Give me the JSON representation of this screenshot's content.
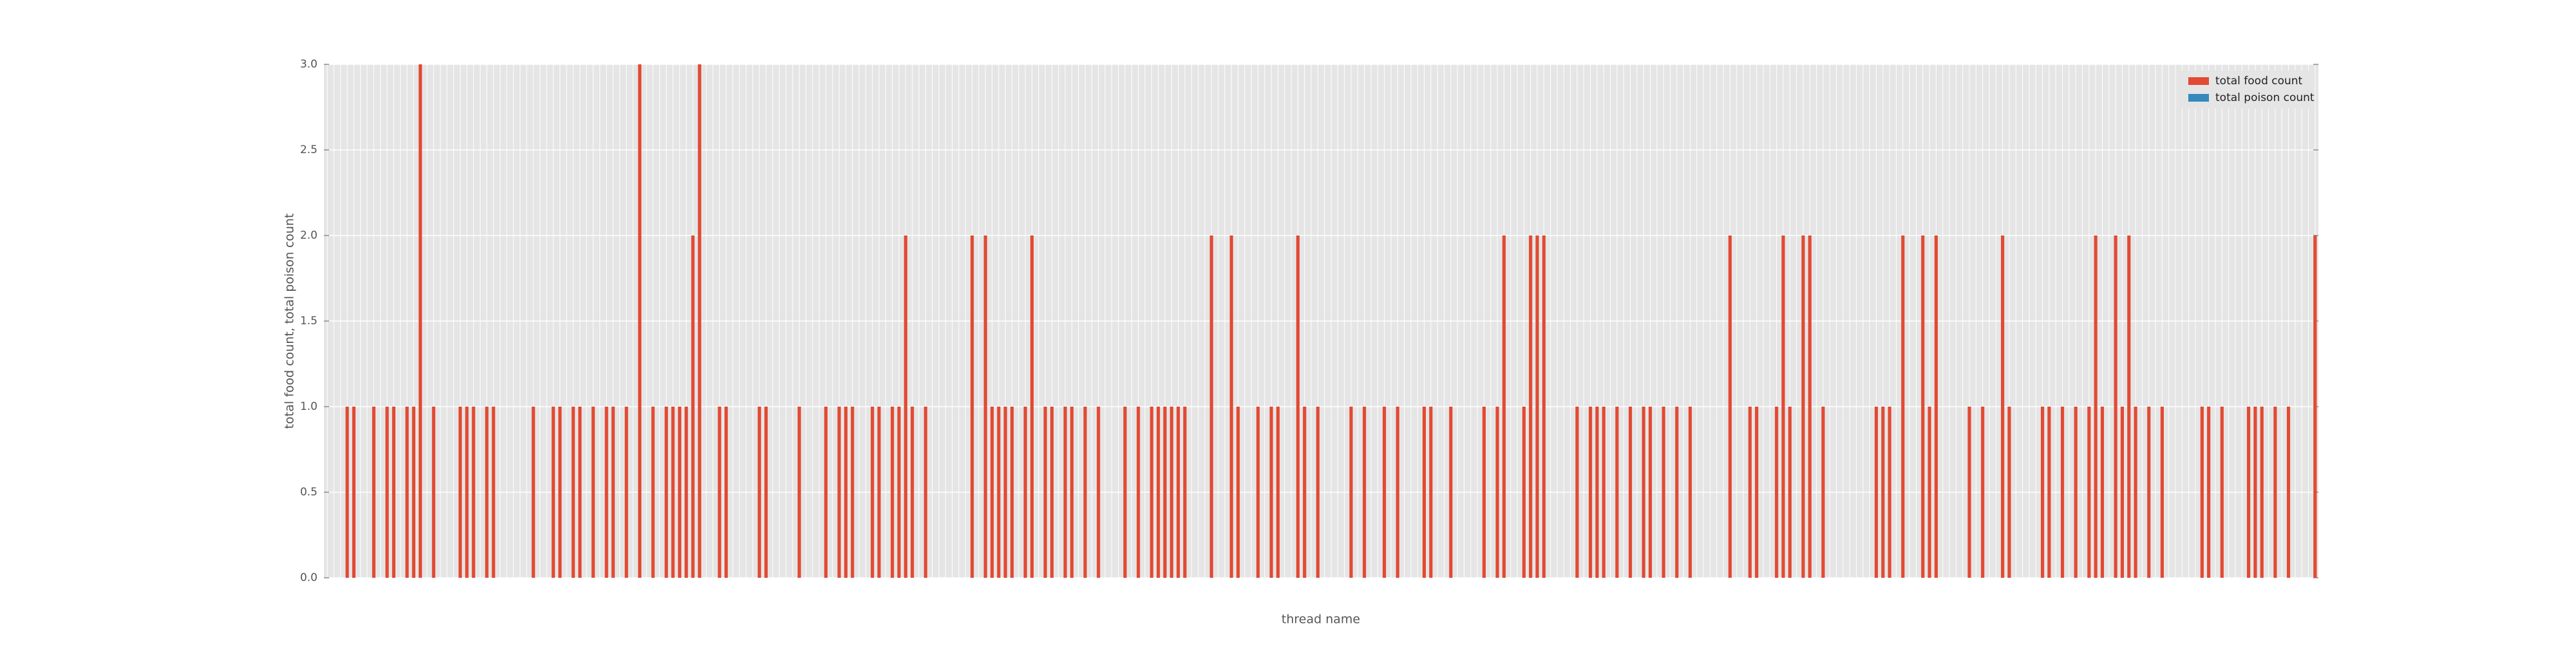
{
  "chart_data": {
    "type": "bar",
    "stacked": true,
    "xlabel": "thread name",
    "ylabel": "total food count, total poison count",
    "categories": [
      null,
      null,
      null,
      null,
      null,
      null,
      null,
      null,
      null,
      null,
      null,
      null,
      null,
      null,
      null,
      null,
      null,
      null,
      null,
      null,
      null,
      null,
      null,
      null,
      null,
      null,
      null,
      null,
      null,
      null,
      null,
      null,
      null,
      null,
      null,
      null,
      null,
      null,
      null,
      null,
      null,
      null,
      null,
      null,
      null,
      null,
      null,
      null,
      null,
      null,
      null,
      null,
      null,
      null,
      null,
      null,
      null,
      null,
      null,
      null,
      null,
      null,
      null,
      null,
      null,
      null,
      null,
      null,
      null,
      null,
      null,
      null,
      null,
      null,
      null,
      null,
      null,
      null,
      null,
      null,
      null,
      null,
      null,
      null,
      null,
      null,
      null,
      null,
      null,
      null,
      null,
      null,
      null,
      null,
      null,
      null,
      null,
      null,
      null,
      null,
      null,
      null,
      null,
      null,
      null,
      null,
      null,
      null,
      null,
      null,
      null,
      null,
      null,
      null,
      null,
      null,
      null,
      null,
      null,
      null,
      null,
      null,
      null,
      null,
      null,
      null,
      null,
      null,
      null,
      null,
      null,
      null,
      null,
      null,
      null,
      null,
      null,
      null,
      null,
      null,
      null,
      null,
      null,
      null,
      null,
      null,
      null,
      null,
      null,
      null,
      null,
      null,
      null,
      null,
      null,
      null,
      null,
      null,
      null,
      null,
      null,
      null,
      null,
      null,
      null,
      null,
      null,
      null,
      null,
      null,
      null,
      null,
      null,
      null,
      null,
      null,
      null,
      null,
      null,
      null,
      null,
      null,
      null,
      null,
      null,
      null,
      null,
      null,
      null,
      null,
      null,
      null,
      null,
      null,
      null,
      null,
      null,
      null,
      null,
      null,
      null,
      null,
      null,
      null,
      null,
      null,
      null,
      null,
      null,
      null,
      null,
      null,
      null,
      null,
      null,
      null,
      null,
      null,
      null,
      null,
      null,
      null,
      null,
      null,
      null,
      null,
      null,
      null,
      null,
      null,
      null,
      null,
      null,
      null,
      null,
      null,
      null,
      null,
      null,
      null,
      null,
      null,
      null,
      null,
      null,
      null,
      null,
      null,
      null,
      null,
      null,
      null,
      null,
      null,
      null,
      null,
      null,
      null,
      null,
      null,
      null,
      null,
      null,
      null,
      null,
      null,
      null,
      null,
      null,
      null,
      null,
      null,
      null,
      null,
      null,
      null,
      null,
      null,
      null,
      null,
      null,
      null,
      null,
      null,
      null,
      null,
      null,
      null,
      null,
      null,
      null,
      null,
      null,
      null,
      null,
      null,
      null,
      null,
      null,
      null
    ],
    "series": [
      {
        "name": "total food count",
        "color": "#e24a33",
        "values": [
          0,
          0,
          0,
          1,
          1,
          0,
          0,
          1,
          0,
          1,
          1,
          0,
          1,
          1,
          3,
          0,
          1,
          0,
          0,
          0,
          1,
          1,
          1,
          0,
          1,
          1,
          0,
          0,
          0,
          0,
          0,
          1,
          0,
          0,
          1,
          1,
          0,
          1,
          1,
          0,
          1,
          0,
          1,
          1,
          0,
          1,
          0,
          3,
          0,
          1,
          0,
          1,
          1,
          1,
          1,
          2,
          3,
          0,
          0,
          1,
          1,
          0,
          0,
          0,
          0,
          1,
          1,
          0,
          0,
          0,
          0,
          1,
          0,
          0,
          0,
          1,
          0,
          1,
          1,
          1,
          0,
          0,
          1,
          1,
          0,
          1,
          1,
          2,
          1,
          0,
          1,
          0,
          0,
          0,
          0,
          0,
          0,
          2,
          0,
          2,
          1,
          1,
          1,
          1,
          0,
          1,
          2,
          0,
          1,
          1,
          0,
          1,
          1,
          0,
          1,
          0,
          1,
          0,
          0,
          0,
          1,
          0,
          1,
          0,
          1,
          1,
          1,
          1,
          1,
          1,
          0,
          0,
          0,
          2,
          0,
          0,
          2,
          1,
          0,
          0,
          1,
          0,
          1,
          1,
          0,
          0,
          2,
          1,
          0,
          1,
          0,
          0,
          0,
          0,
          1,
          0,
          1,
          0,
          0,
          1,
          0,
          1,
          0,
          0,
          0,
          1,
          1,
          0,
          0,
          1,
          0,
          0,
          0,
          0,
          1,
          0,
          1,
          2,
          0,
          0,
          1,
          2,
          2,
          2,
          0,
          0,
          0,
          0,
          1,
          0,
          1,
          1,
          1,
          0,
          1,
          0,
          1,
          0,
          1,
          1,
          0,
          1,
          0,
          1,
          0,
          1,
          0,
          0,
          0,
          0,
          0,
          2,
          0,
          0,
          1,
          1,
          0,
          0,
          1,
          2,
          1,
          0,
          2,
          2,
          0,
          1,
          0,
          0,
          0,
          0,
          0,
          0,
          0,
          1,
          1,
          1,
          0,
          2,
          0,
          0,
          2,
          1,
          2,
          0,
          0,
          0,
          0,
          1,
          0,
          1,
          0,
          0,
          2,
          1,
          0,
          0,
          0,
          0,
          1,
          1,
          0,
          1,
          0,
          1,
          0,
          1,
          2,
          1,
          0,
          2,
          1,
          2,
          1,
          0,
          1,
          0,
          1,
          0,
          0,
          0,
          0,
          0,
          1,
          1,
          0,
          1,
          0,
          0,
          0,
          1,
          1,
          1,
          0,
          1,
          0,
          1,
          0,
          0,
          0,
          2
        ]
      },
      {
        "name": "total poison count",
        "color": "#348abd",
        "values": [
          0,
          0,
          0,
          0,
          0,
          0,
          0,
          0,
          0,
          0,
          0,
          0,
          0,
          0,
          0,
          0,
          0,
          0,
          0,
          0,
          0,
          0,
          0,
          0,
          0,
          0,
          0,
          0,
          0,
          0,
          0,
          0,
          0,
          0,
          0,
          0,
          0,
          0,
          0,
          0,
          0,
          0,
          0,
          0,
          0,
          0,
          0,
          0,
          0,
          0,
          0,
          0,
          0,
          0,
          0,
          0,
          0,
          0,
          0,
          0,
          0,
          0,
          0,
          0,
          0,
          0,
          0,
          0,
          0,
          0,
          0,
          0,
          0,
          0,
          0,
          0,
          0,
          0,
          0,
          0,
          0,
          0,
          0,
          0,
          0,
          0,
          0,
          0,
          0,
          0,
          0,
          0,
          0,
          0,
          0,
          0,
          0,
          0,
          0,
          0,
          0,
          0,
          0,
          0,
          0,
          0,
          0,
          0,
          0,
          0,
          0,
          0,
          0,
          0,
          0,
          0,
          0,
          0,
          0,
          0,
          0,
          0,
          0,
          0,
          0,
          0,
          0,
          0,
          0,
          0,
          0,
          0,
          0,
          0,
          0,
          0,
          0,
          0,
          0,
          0,
          0,
          0,
          0,
          0,
          0,
          0,
          0,
          0,
          0,
          0,
          0,
          0,
          0,
          0,
          0,
          0,
          0,
          0,
          0,
          0,
          0,
          0,
          0,
          0,
          0,
          0,
          0,
          0,
          0,
          0,
          0,
          0,
          0,
          0,
          0,
          0,
          0,
          0,
          0,
          0,
          0,
          0,
          0,
          0,
          0,
          0,
          0,
          0,
          0,
          0,
          0,
          0,
          0,
          0,
          0,
          0,
          0,
          0,
          0,
          0,
          0,
          0,
          0,
          0,
          0,
          0,
          0,
          0,
          0,
          0,
          0,
          0,
          0,
          0,
          0,
          0,
          0,
          0,
          0,
          0,
          0,
          0,
          0,
          0,
          0,
          0,
          0,
          0,
          0,
          0,
          0,
          0,
          0,
          0,
          0,
          0,
          0,
          0,
          0,
          0,
          0,
          0,
          0,
          0,
          0,
          0,
          0,
          0,
          0,
          0,
          0,
          0,
          0,
          0,
          0,
          0,
          0,
          0,
          0,
          0,
          0,
          0,
          0,
          0,
          0,
          0,
          0,
          0,
          0,
          0,
          0,
          0,
          0,
          0,
          0,
          0,
          0,
          0,
          0,
          0,
          0,
          0,
          0,
          0,
          0,
          0,
          0,
          0,
          0,
          0,
          0,
          0,
          0,
          0,
          0,
          0,
          0,
          0,
          0,
          0
        ]
      }
    ],
    "ylim": [
      0,
      3
    ],
    "yticks": [
      {
        "value": 0,
        "label": "0.0"
      },
      0.5,
      {
        "value": 1,
        "label": "1.0"
      },
      1.5,
      {
        "value": 2,
        "label": "2.0"
      },
      2.5,
      {
        "value": 3,
        "label": "3.0"
      }
    ],
    "grid": true,
    "legend": "upper right"
  }
}
